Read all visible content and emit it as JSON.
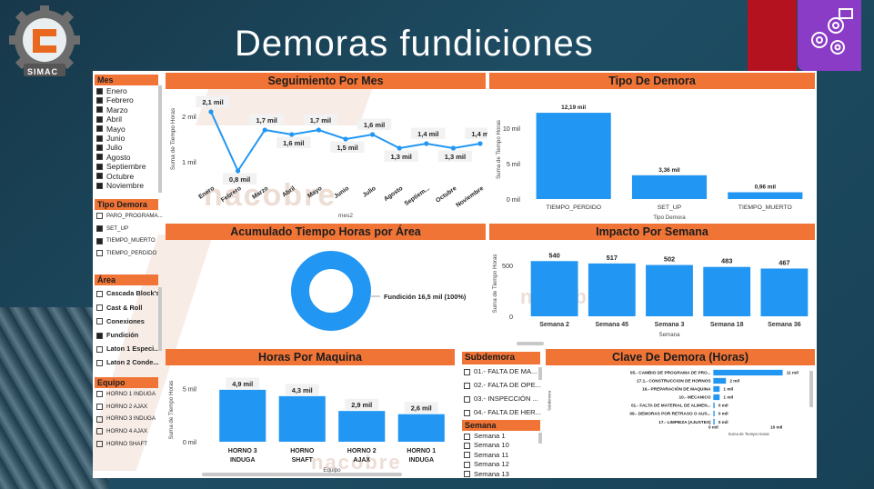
{
  "title": "Demoras fundiciones",
  "logo": {
    "text": "SIMAC"
  },
  "watermark": {
    "text": "nacobre"
  },
  "slicers": {
    "mes": {
      "header": "Mes",
      "items": [
        "Enero",
        "Febrero",
        "Marzo",
        "Abril",
        "Mayo",
        "Junio",
        "Julio",
        "Agosto",
        "Septiembre",
        "Octubre",
        "Noviembre"
      ]
    },
    "tipo_demora": {
      "header": "Tipo Demora",
      "items": [
        {
          "label": "PARO_PROGRAMA...",
          "checked": false
        },
        {
          "label": "SET_UP",
          "checked": true
        },
        {
          "label": "TIEMPO_MUERTO",
          "checked": true
        },
        {
          "label": "TIEMPO_PERDIDO",
          "checked": false
        }
      ]
    },
    "area": {
      "header": "Área",
      "items": [
        {
          "label": "Cascada Block's",
          "checked": false
        },
        {
          "label": "Cast & Roll",
          "checked": false
        },
        {
          "label": "Conexiones",
          "checked": false
        },
        {
          "label": "Fundición",
          "checked": true
        },
        {
          "label": "Laton 1 Especi...",
          "checked": false
        },
        {
          "label": "Laton 2 Conde...",
          "checked": false
        }
      ]
    },
    "equipo": {
      "header": "Equipo",
      "items": [
        "HORNO 1 INDUGA",
        "HORNO 2 AJAX",
        "HORNO 3 INDUGA",
        "HORNO 4 AJAX",
        "HORNO SHAFT"
      ]
    },
    "subdemora": {
      "header": "Subdemora",
      "items": [
        "01.- FALTA DE MA...",
        "02.- FALTA DE OPE...",
        "03.- INSPECCIÓN ...",
        "04.- FALTA DE HER..."
      ]
    },
    "semana": {
      "header": "Semana",
      "items": [
        "Semana 1",
        "Semana 10",
        "Semana 11",
        "Semana 12",
        "Semana 13"
      ]
    }
  },
  "charts": {
    "seguimiento": {
      "header": "Seguimiento Por Mes",
      "chart_data": {
        "type": "line",
        "title": "Seguimiento Por Mes",
        "xlabel": "mes2",
        "ylabel": "Suma de Tiempo Horas",
        "categories": [
          "Enero",
          "Febrero",
          "Marzo",
          "Abril",
          "Mayo",
          "Junio",
          "Julio",
          "Agosto",
          "Septiem...",
          "Octubre",
          "Noviembre"
        ],
        "values": [
          2.1,
          0.8,
          1.7,
          1.6,
          1.7,
          1.5,
          1.6,
          1.3,
          1.4,
          1.3,
          1.4
        ],
        "data_labels": [
          "2,1 mil",
          "0,8 mil",
          "1,7 mil",
          "1,6 mil",
          "1,7 mil",
          "1,5 mil",
          "1,6 mil",
          "1,3 mil",
          "1,4 mil",
          "1,3 mil",
          "1,4 mil"
        ],
        "yticks": [
          "2 mil",
          "1 mil"
        ],
        "ylim": [
          0.6,
          2.4
        ],
        "color": "#2196f3"
      }
    },
    "tipo": {
      "header": "Tipo De Demora",
      "chart_data": {
        "type": "bar",
        "title": "Tipo De Demora",
        "xlabel": "Tipo Demora",
        "ylabel": "Suma de Tiempo Horas",
        "categories": [
          "TIEMPO_PERDIDO",
          "SET_UP",
          "TIEMPO_MUERTO"
        ],
        "values": [
          12.19,
          3.36,
          0.96
        ],
        "data_labels": [
          "12,19 mil",
          "3,36 mil",
          "0,96 mil"
        ],
        "yticks": [
          "10 mil",
          "5 mil",
          "0 mil"
        ],
        "ylim": [
          0,
          14
        ],
        "color": "#2196f3"
      }
    },
    "acumulado": {
      "header": "Acumulado Tiempo Horas por Área",
      "chart_data": {
        "type": "pie",
        "title": "Acumulado Tiempo Horas por Área",
        "categories": [
          "Fundición"
        ],
        "values": [
          16.5
        ],
        "data_labels": [
          "Fundición 16,5 mil (100%)"
        ],
        "color": "#2196f3"
      }
    },
    "impacto": {
      "header": "Impacto Por Semana",
      "chart_data": {
        "type": "bar",
        "title": "Impacto Por Semana",
        "xlabel": "Semana",
        "ylabel": "Suma de Tiempo Horas",
        "categories": [
          "Semana 2",
          "Semana 45",
          "Semana 3",
          "Semana 18",
          "Semana 36"
        ],
        "values": [
          540,
          517,
          502,
          483,
          467
        ],
        "data_labels": [
          "540",
          "517",
          "502",
          "483",
          "467"
        ],
        "yticks": [
          "500",
          "0"
        ],
        "ylim": [
          0,
          640
        ],
        "color": "#2196f3"
      }
    },
    "maquina": {
      "header": "Horas Por Maquina",
      "chart_data": {
        "type": "bar",
        "title": "Horas Por Maquina",
        "xlabel": "Equipo",
        "ylabel": "Suma de Tiempo Horas",
        "categories": [
          "HORNO 3 INDUGA",
          "HORNO SHAFT",
          "HORNO 2 AJAX",
          "HORNO 1 INDUGA"
        ],
        "values": [
          4.9,
          4.3,
          2.9,
          2.6
        ],
        "data_labels": [
          "4,9 mil",
          "4,3 mil",
          "2,9 mil",
          "2,6 mil"
        ],
        "yticks": [
          "5 mil",
          "0 mil"
        ],
        "ylim": [
          0,
          6
        ],
        "color": "#2196f3"
      }
    },
    "clave": {
      "header": "Clave De Demora (Horas)",
      "chart_data": {
        "type": "bar",
        "orientation": "horizontal",
        "title": "Clave De Demora (Horas)",
        "xlabel": "Suma de Tiempo Horas",
        "ylabel": "Subdemora",
        "categories": [
          "05.- CAMBIO DE PROGRAMA DE PRO...",
          "17.1.- CONSTRUCCION DE HORNOS",
          "16.- PREPARACIÓN DE MAQUINA",
          "10.- MECANICO",
          "01.- FALTA DE MATERIAL DE ALIMEN...",
          "09.- DEMORAS POR RETRASO O AUS...",
          "17.- LIMPIEZA (AJUSTES)"
        ],
        "values": [
          11,
          2,
          1,
          1,
          0,
          0,
          0
        ],
        "data_labels": [
          "11 mil",
          "2 mil",
          "1 mil",
          "1 mil",
          "0 mil",
          "0 mil",
          "0 mil"
        ],
        "xticks": [
          "0 mil",
          "10 mil"
        ],
        "xlim": [
          0,
          14
        ],
        "color": "#2196f3"
      }
    }
  }
}
